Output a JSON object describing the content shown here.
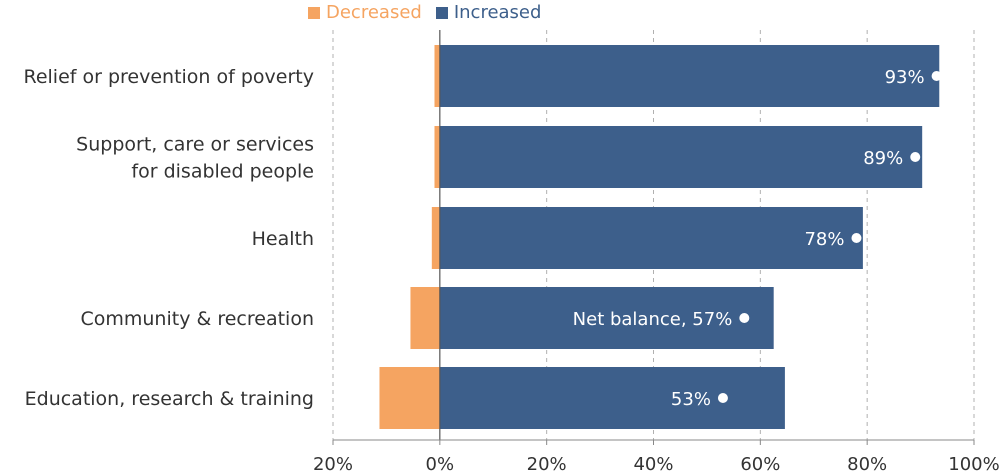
{
  "chart_data": {
    "type": "bar",
    "orientation": "horizontal",
    "stacked": "diverging",
    "categories": [
      [
        "Relief or prevention of poverty"
      ],
      [
        "Support, care or services",
        "for disabled people"
      ],
      [
        "Health"
      ],
      [
        "Community & recreation"
      ],
      [
        "Education, research & training"
      ]
    ],
    "series": [
      {
        "name": "Decreased",
        "color": "#f5a461",
        "values": [
          -1,
          -1,
          -1.5,
          -5.5,
          -11.3
        ]
      },
      {
        "name": "Increased",
        "color": "#3d5f8b",
        "values": [
          93.5,
          90.3,
          79.2,
          62.5,
          64.6
        ]
      }
    ],
    "net_balance": {
      "values": [
        93,
        89,
        78,
        57,
        53
      ],
      "labels": [
        "93%",
        "89%",
        "78%",
        "Net balance, 57%",
        "53%"
      ],
      "marker_color": "#ffffff"
    },
    "xlim": [
      -20,
      100
    ],
    "xticks": [
      -20,
      0,
      20,
      40,
      60,
      80,
      100
    ],
    "xtick_labels": [
      "20%",
      "0%",
      "20%",
      "40%",
      "60%",
      "80%",
      "100%"
    ],
    "grid": "vertical-dashed",
    "legend_position": "top"
  }
}
